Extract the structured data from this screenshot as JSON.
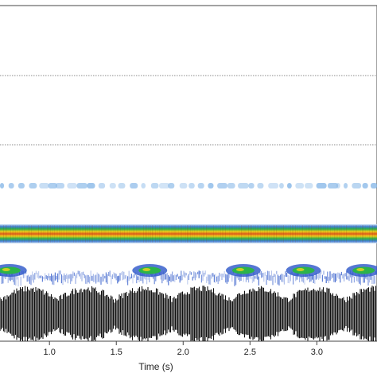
{
  "chart_data": {
    "type": "heatmap",
    "title": "",
    "xlabel": "Time (s)",
    "ylabel": "",
    "xlim": [
      0.63,
      3.45
    ],
    "x_ticks": [
      1.0,
      1.5,
      2.0,
      2.5,
      3.0
    ],
    "x_tick_labels": [
      "1.0",
      "1.5",
      "2.0",
      "2.5",
      "3.0"
    ],
    "grid": "horizontal dotted lines",
    "panels": [
      {
        "name": "",
        "kind": "spectrogram"
      },
      {
        "name": "",
        "kind": "waveform"
      }
    ],
    "bands": [
      {
        "kind": "tonal-harmonic",
        "intensity": "low",
        "color": "#8ab9e8"
      },
      {
        "kind": "tonal-fundamental",
        "intensity": "high",
        "color": "#e8a020"
      },
      {
        "kind": "broadband-pulses",
        "intensity": "medium",
        "color": "#2a55c8"
      }
    ],
    "pulse_events_s": [
      0.7,
      1.75,
      2.45,
      2.9,
      3.35
    ],
    "colors": {
      "low": "#cfe3f7",
      "mid_low": "#3d7fd9",
      "mid": "#2bb34a",
      "mid_high": "#f2d21b",
      "high": "#e05a1c",
      "waveform": "#111111"
    }
  }
}
